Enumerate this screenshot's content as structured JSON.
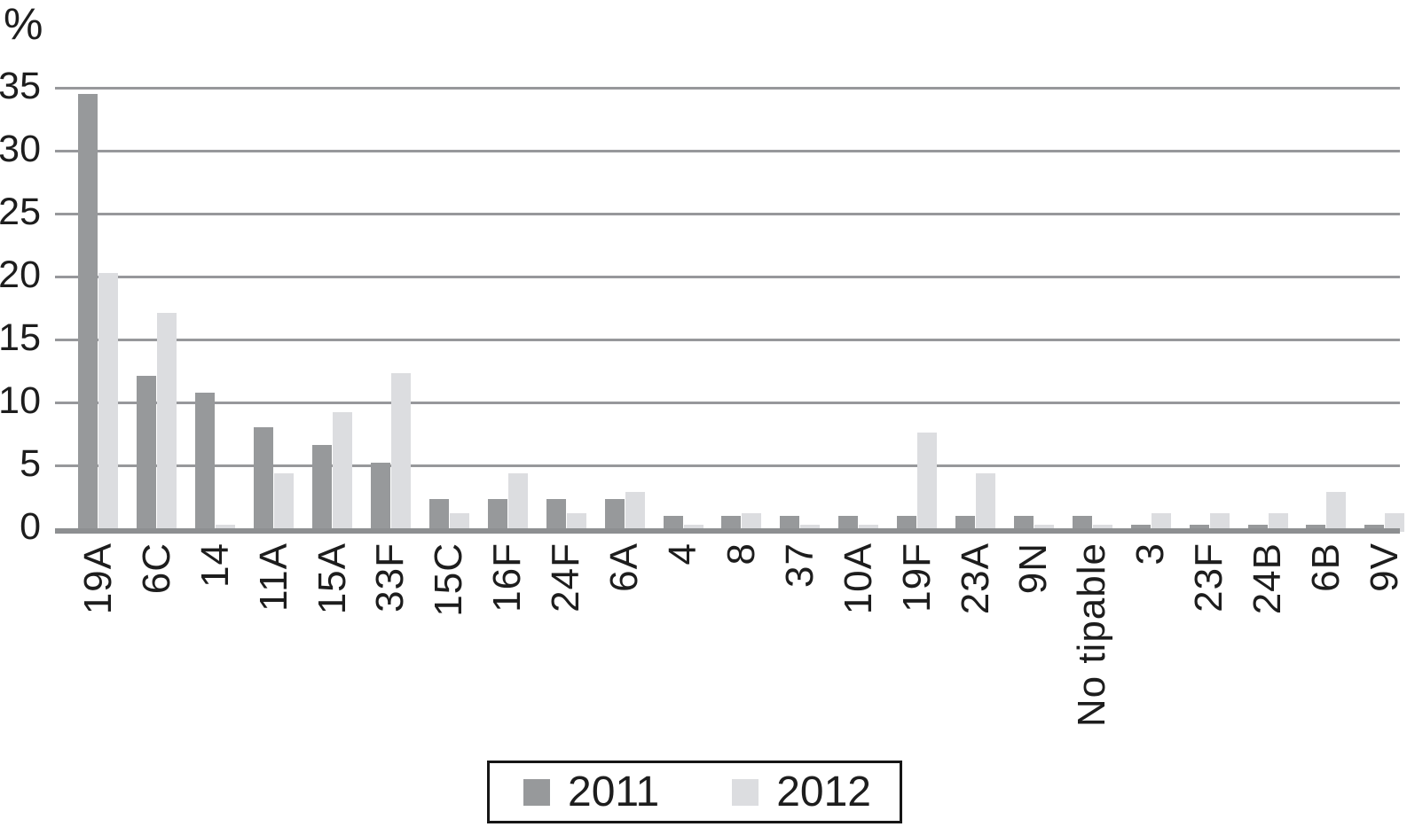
{
  "chart_data": {
    "type": "bar",
    "title": "",
    "xlabel": "",
    "ylabel": "%",
    "categories": [
      "19A",
      "6C",
      "14",
      "11A",
      "15A",
      "33F",
      "15C",
      "16F",
      "24F",
      "6A",
      "4",
      "8",
      "37",
      "10A",
      "19F",
      "23A",
      "9N",
      "No tipable",
      "3",
      "23F",
      "24B",
      "6B",
      "9V"
    ],
    "series": [
      {
        "name": "2011",
        "color": "#97999b",
        "values": [
          34.5,
          12.1,
          10.8,
          8.0,
          6.6,
          5.2,
          2.3,
          2.3,
          2.3,
          2.3,
          1.0,
          1.0,
          1.0,
          1.0,
          1.0,
          1.0,
          1.0,
          1.0,
          0.3,
          0.3,
          0.3,
          0.3,
          0.3
        ]
      },
      {
        "name": "2012",
        "color": "#dcdde0",
        "values": [
          20.3,
          17.1,
          0.3,
          4.4,
          9.2,
          12.3,
          1.2,
          4.4,
          1.2,
          2.9,
          0.3,
          1.2,
          0.3,
          0.3,
          7.6,
          4.4,
          0.3,
          0.3,
          1.2,
          1.2,
          1.2,
          2.9,
          1.2
        ]
      }
    ],
    "y_ticks": [
      0,
      5,
      10,
      15,
      20,
      25,
      30,
      35
    ],
    "ylim": [
      0,
      35
    ],
    "grid": true,
    "legend_position": "bottom",
    "legend_labels": [
      "2011",
      "2012"
    ]
  },
  "colors": {
    "background": "#ffffff",
    "bar_2011": "#97999b",
    "bar_2012": "#dcdde0",
    "gridline": "#97989b",
    "axis_line": "#8d8f91",
    "text": "#1d1d1d",
    "legend_border": "#161616"
  }
}
